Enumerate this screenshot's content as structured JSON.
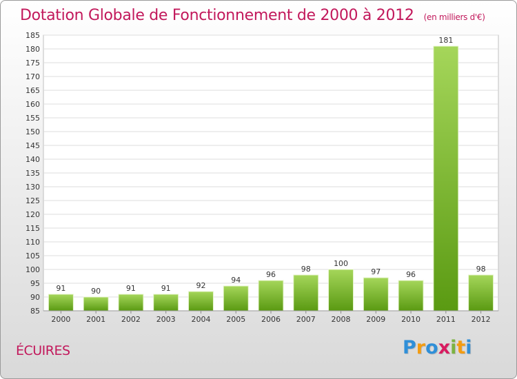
{
  "chart_data": {
    "type": "bar",
    "title": "Dotation Globale de Fonctionnement de 2000 à 2012",
    "subtitle": "(en milliers d'€)",
    "categories": [
      "2000",
      "2001",
      "2002",
      "2003",
      "2004",
      "2005",
      "2006",
      "2007",
      "2008",
      "2009",
      "2010",
      "2011",
      "2012"
    ],
    "values": [
      91,
      90,
      91,
      91,
      92,
      94,
      96,
      98,
      100,
      97,
      96,
      181,
      98
    ],
    "ylim": [
      85,
      185
    ],
    "yticks": [
      85,
      90,
      95,
      100,
      105,
      110,
      115,
      120,
      125,
      130,
      135,
      140,
      145,
      150,
      155,
      160,
      165,
      170,
      175,
      180,
      185
    ],
    "xlabel": "",
    "ylabel": "",
    "grid": true
  },
  "commune": "ÉCUIRES",
  "logo": {
    "letters": [
      "P",
      "r",
      "o",
      "x",
      "i",
      "t",
      "i"
    ],
    "colors": [
      "#2f8fd8",
      "#f39c12",
      "#2f8fd8",
      "#d81b60",
      "#7cb342",
      "#f39c12",
      "#2f8fd8"
    ]
  },
  "colors": {
    "bar_top": "#a5d65a",
    "bar_bottom": "#5a9a12",
    "accent": "#c2185b"
  }
}
